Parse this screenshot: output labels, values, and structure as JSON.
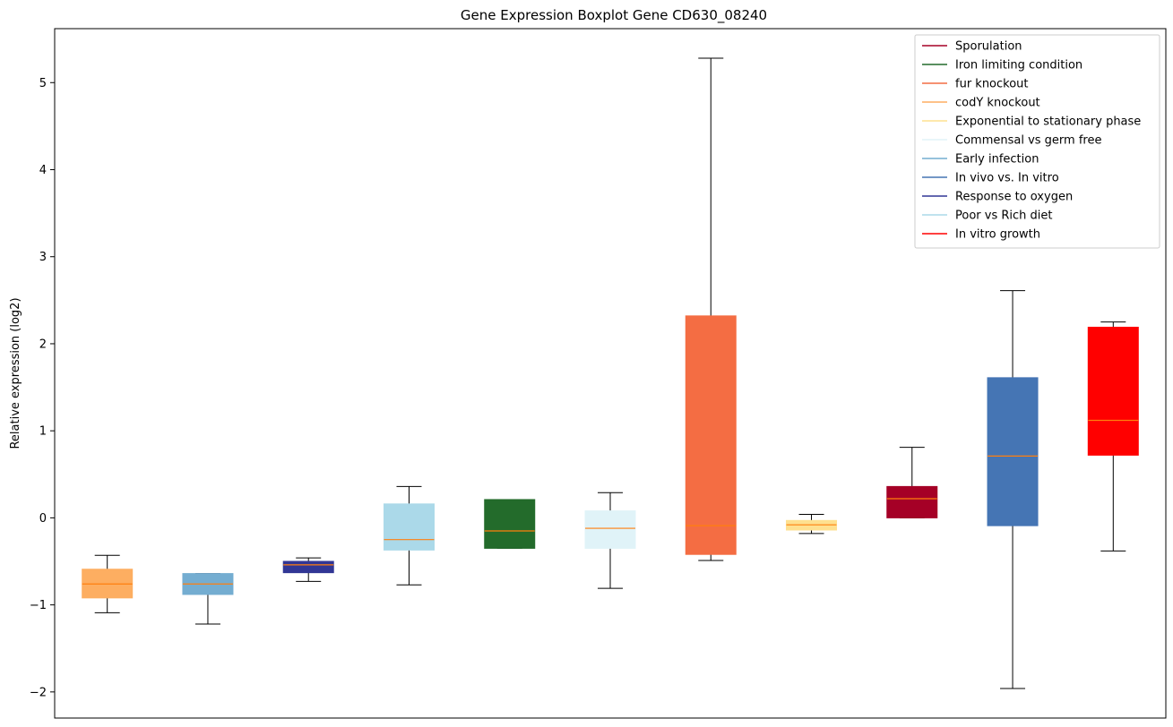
{
  "chart_data": {
    "type": "boxplot",
    "title": "Gene Expression Boxplot Gene CD630_08240",
    "xlabel": "",
    "ylabel": "Relative expression (log2)",
    "ylim": [
      -2.3,
      5.62
    ],
    "yticks": [
      -2,
      -1,
      0,
      1,
      2,
      3,
      4,
      5
    ],
    "ytick_labels": [
      "−2",
      "−1",
      "0",
      "1",
      "2",
      "3",
      "4",
      "5"
    ],
    "grid": false,
    "legend_position": "top-right",
    "median_color": "#ff7f0e",
    "boxes": [
      {
        "color": "#fdae61",
        "whisker_low": -1.09,
        "q1": -0.92,
        "median": -0.76,
        "q3": -0.59,
        "whisker_high": -0.43
      },
      {
        "color": "#74add1",
        "whisker_low": -1.22,
        "q1": -0.88,
        "median": -0.76,
        "q3": -0.64,
        "whisker_high": -0.64
      },
      {
        "color": "#313695",
        "whisker_low": -0.73,
        "q1": -0.63,
        "median": -0.54,
        "q3": -0.5,
        "whisker_high": -0.46
      },
      {
        "color": "#abd9e9",
        "whisker_low": -0.77,
        "q1": -0.37,
        "median": -0.25,
        "q3": 0.16,
        "whisker_high": 0.36
      },
      {
        "color": "#236b2b",
        "whisker_low": -0.35,
        "q1": -0.35,
        "median": -0.15,
        "q3": 0.21,
        "whisker_high": 0.21
      },
      {
        "color": "#e0f3f8",
        "whisker_low": -0.81,
        "q1": -0.35,
        "median": -0.12,
        "q3": 0.08,
        "whisker_high": 0.29
      },
      {
        "color": "#f46d43",
        "whisker_low": -0.49,
        "q1": -0.42,
        "median": -0.09,
        "q3": 2.32,
        "whisker_high": 5.28
      },
      {
        "color": "#fee090",
        "whisker_low": -0.18,
        "q1": -0.14,
        "median": -0.08,
        "q3": -0.03,
        "whisker_high": 0.04
      },
      {
        "color": "#a50026",
        "whisker_low": 0.0,
        "q1": 0.0,
        "median": 0.22,
        "q3": 0.36,
        "whisker_high": 0.81
      },
      {
        "color": "#4575b4",
        "whisker_low": -1.96,
        "q1": -0.09,
        "median": 0.71,
        "q3": 1.61,
        "whisker_high": 2.61
      },
      {
        "color": "#ff0000",
        "whisker_low": -0.38,
        "q1": 0.72,
        "median": 1.12,
        "q3": 2.19,
        "whisker_high": 2.25
      }
    ],
    "legend": [
      {
        "label": "Sporulation",
        "color": "#a50026"
      },
      {
        "label": "Iron limiting condition",
        "color": "#236b2b"
      },
      {
        "label": "fur knockout",
        "color": "#f46d43"
      },
      {
        "label": "codY knockout",
        "color": "#fdae61"
      },
      {
        "label": "Exponential to stationary phase",
        "color": "#fee090"
      },
      {
        "label": "Commensal vs germ free",
        "color": "#e0f3f8"
      },
      {
        "label": "Early infection",
        "color": "#74add1"
      },
      {
        "label": "In vivo vs. In vitro",
        "color": "#4575b4"
      },
      {
        "label": "Response to oxygen",
        "color": "#313695"
      },
      {
        "label": "Poor vs Rich diet",
        "color": "#abd9e9"
      },
      {
        "label": "In vitro growth",
        "color": "#ff0000"
      }
    ]
  }
}
